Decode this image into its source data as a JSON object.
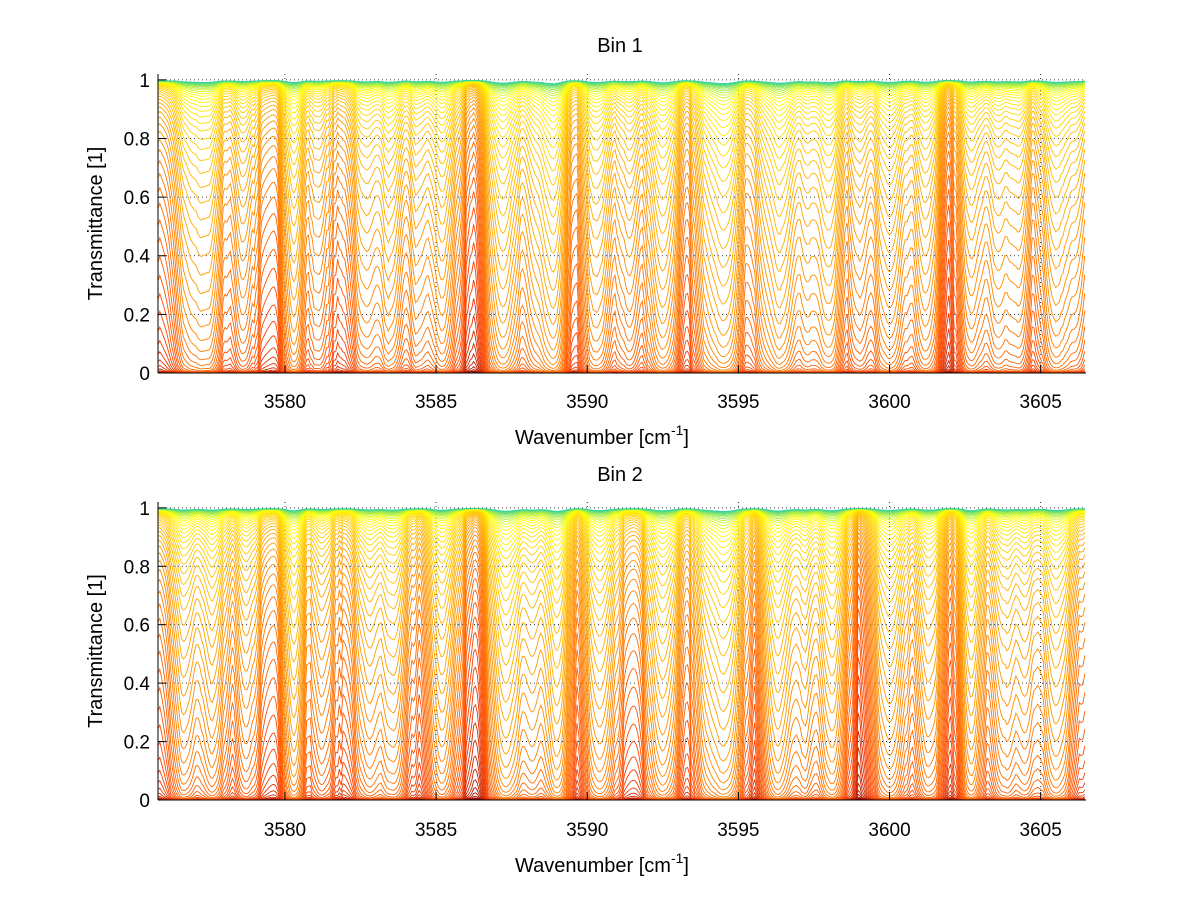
{
  "chart_data": [
    {
      "type": "line",
      "title": "Bin 1",
      "xlabel": "Wavenumber [cm",
      "xlabel_sup": "-1",
      "xlabel_end": "]",
      "ylabel": "Transmittance [1]",
      "xlim": [
        3575.8,
        3606.5
      ],
      "ylim": [
        0,
        1.02
      ],
      "xticks": [
        3580,
        3585,
        3590,
        3595,
        3600,
        3605
      ],
      "xtick_labels": [
        "3580",
        "3585",
        "3590",
        "3595",
        "3600",
        "3605"
      ],
      "yticks": [
        0,
        0.2,
        0.4,
        0.6,
        0.8,
        1
      ],
      "ytick_labels": [
        "0",
        "0.2",
        "0.4",
        "0.6",
        "0.8",
        "1"
      ],
      "grid": "dotted",
      "absorption_lines_cm-1": [
        {
          "x": 3576.9,
          "w": 0.45,
          "s": 0.75
        },
        {
          "x": 3577.5,
          "w": 0.4,
          "s": 0.85
        },
        {
          "x": 3578.6,
          "w": 0.35,
          "s": 0.45
        },
        {
          "x": 3580.3,
          "w": 0.3,
          "s": 1.1
        },
        {
          "x": 3581.1,
          "w": 0.35,
          "s": 0.4
        },
        {
          "x": 3582.7,
          "w": 0.4,
          "s": 0.6
        },
        {
          "x": 3583.5,
          "w": 0.4,
          "s": 0.85
        },
        {
          "x": 3584.4,
          "w": 0.35,
          "s": 0.55
        },
        {
          "x": 3585.2,
          "w": 0.4,
          "s": 0.75
        },
        {
          "x": 3587.2,
          "w": 0.45,
          "s": 1.4
        },
        {
          "x": 3588.3,
          "w": 0.4,
          "s": 0.7
        },
        {
          "x": 3588.9,
          "w": 0.35,
          "s": 1.6
        },
        {
          "x": 3590.3,
          "w": 0.45,
          "s": 1.0
        },
        {
          "x": 3591.4,
          "w": 0.35,
          "s": 0.5
        },
        {
          "x": 3592.5,
          "w": 0.45,
          "s": 1.2
        },
        {
          "x": 3594.0,
          "w": 0.4,
          "s": 0.7
        },
        {
          "x": 3594.6,
          "w": 0.45,
          "s": 1.45
        },
        {
          "x": 3595.8,
          "w": 0.35,
          "s": 0.5
        },
        {
          "x": 3596.4,
          "w": 0.45,
          "s": 1.3
        },
        {
          "x": 3597.3,
          "w": 0.35,
          "s": 0.55
        },
        {
          "x": 3598.0,
          "w": 0.4,
          "s": 1.1
        },
        {
          "x": 3599.0,
          "w": 0.35,
          "s": 0.5
        },
        {
          "x": 3600.0,
          "w": 0.45,
          "s": 0.9
        },
        {
          "x": 3601.2,
          "w": 0.4,
          "s": 0.85
        },
        {
          "x": 3602.7,
          "w": 0.35,
          "s": 0.65
        },
        {
          "x": 3603.6,
          "w": 0.4,
          "s": 0.6
        },
        {
          "x": 3604.3,
          "w": 0.35,
          "s": 0.65
        },
        {
          "x": 3605.5,
          "w": 0.45,
          "s": 0.9
        },
        {
          "x": 3606.2,
          "w": 0.3,
          "s": 0.4
        }
      ],
      "series_count": 60,
      "series_color_range": [
        "#8b0000",
        "#ff4500",
        "#ffa500",
        "#ffff00",
        "#00c8c8"
      ]
    },
    {
      "type": "line",
      "title": "Bin 2",
      "xlabel": "Wavenumber [cm",
      "xlabel_sup": "-1",
      "xlabel_end": "]",
      "ylabel": "Transmittance [1]",
      "xlim": [
        3575.8,
        3606.5
      ],
      "ylim": [
        0,
        1.02
      ],
      "xticks": [
        3580,
        3585,
        3590,
        3595,
        3600,
        3605
      ],
      "xtick_labels": [
        "3580",
        "3585",
        "3590",
        "3595",
        "3600",
        "3605"
      ],
      "yticks": [
        0,
        0.2,
        0.4,
        0.6,
        0.8,
        1
      ],
      "ytick_labels": [
        "0",
        "0.2",
        "0.4",
        "0.6",
        "0.8",
        "1"
      ],
      "grid": "dotted",
      "absorption_lines_cm-1": [
        {
          "x": 3576.7,
          "w": 0.4,
          "s": 0.7
        },
        {
          "x": 3577.6,
          "w": 0.4,
          "s": 0.85
        },
        {
          "x": 3578.7,
          "w": 0.35,
          "s": 0.45
        },
        {
          "x": 3580.3,
          "w": 0.3,
          "s": 1.2
        },
        {
          "x": 3581.2,
          "w": 0.35,
          "s": 0.45
        },
        {
          "x": 3582.8,
          "w": 0.4,
          "s": 0.65
        },
        {
          "x": 3583.6,
          "w": 0.4,
          "s": 0.8
        },
        {
          "x": 3585.2,
          "w": 0.4,
          "s": 0.8
        },
        {
          "x": 3587.3,
          "w": 0.45,
          "s": 1.45
        },
        {
          "x": 3588.2,
          "w": 0.35,
          "s": 0.65
        },
        {
          "x": 3589.0,
          "w": 0.35,
          "s": 1.5
        },
        {
          "x": 3590.4,
          "w": 0.45,
          "s": 1.05
        },
        {
          "x": 3592.5,
          "w": 0.45,
          "s": 1.2
        },
        {
          "x": 3594.0,
          "w": 0.4,
          "s": 0.7
        },
        {
          "x": 3594.6,
          "w": 0.45,
          "s": 1.4
        },
        {
          "x": 3596.3,
          "w": 0.45,
          "s": 1.25
        },
        {
          "x": 3597.2,
          "w": 0.35,
          "s": 0.55
        },
        {
          "x": 3598.1,
          "w": 0.4,
          "s": 1.1
        },
        {
          "x": 3600.0,
          "w": 0.45,
          "s": 0.95
        },
        {
          "x": 3601.3,
          "w": 0.4,
          "s": 0.85
        },
        {
          "x": 3602.7,
          "w": 0.3,
          "s": 1.1
        },
        {
          "x": 3603.8,
          "w": 0.4,
          "s": 0.65
        },
        {
          "x": 3604.5,
          "w": 0.35,
          "s": 0.65
        },
        {
          "x": 3605.5,
          "w": 0.45,
          "s": 1.0
        }
      ],
      "series_count": 60,
      "series_color_range": [
        "#8b0000",
        "#ff4500",
        "#ffa500",
        "#ffff00",
        "#00c8c8"
      ]
    }
  ]
}
